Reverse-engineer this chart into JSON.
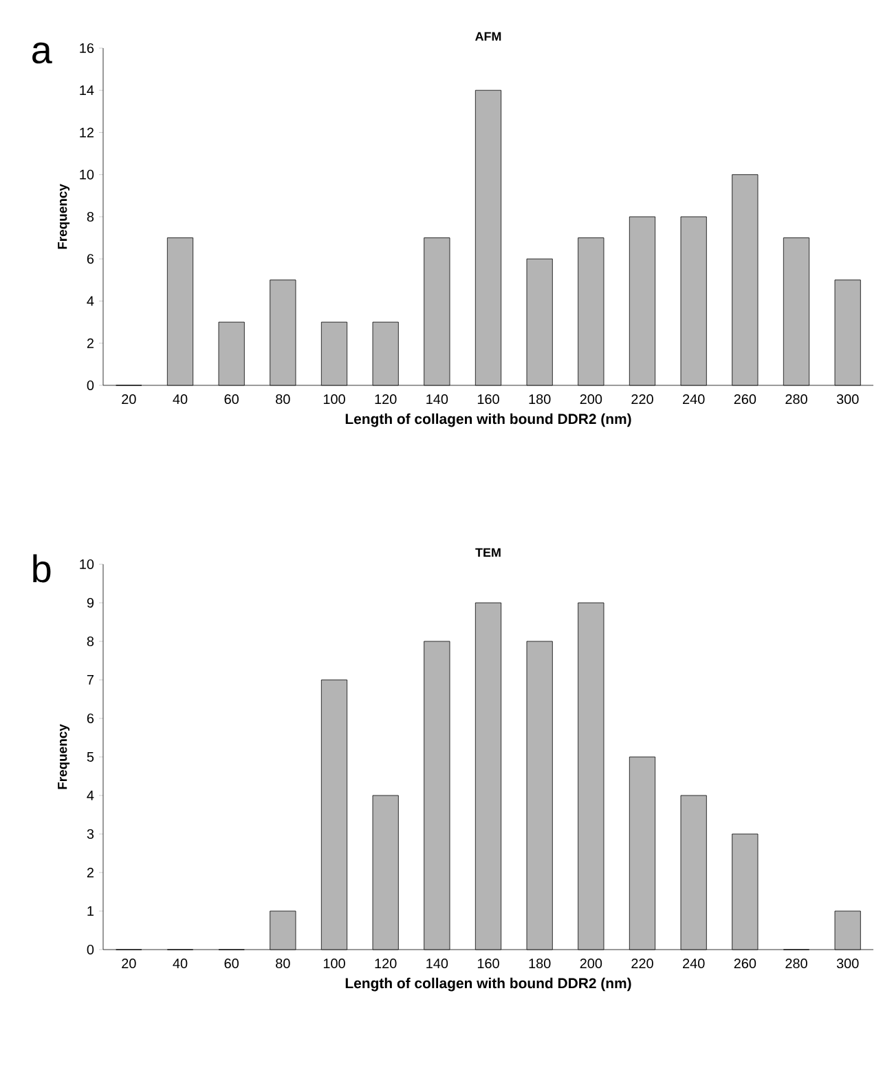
{
  "chart_data": [
    {
      "type": "bar",
      "title": "AFM",
      "xlabel": "Length of collagen with bound DDR2  (nm)",
      "ylabel": "Frequency",
      "annotations": [
        "a"
      ],
      "categories": [
        "20",
        "40",
        "60",
        "80",
        "100",
        "120",
        "140",
        "160",
        "180",
        "200",
        "220",
        "240",
        "260",
        "280",
        "300"
      ],
      "values": [
        0,
        7,
        3,
        5,
        3,
        3,
        7,
        14,
        6,
        7,
        8,
        8,
        10,
        7,
        5
      ],
      "color": "#b4b4b4",
      "ylim": [
        0,
        16
      ],
      "yticks": [
        0,
        2,
        4,
        6,
        8,
        10,
        12,
        14,
        16
      ]
    },
    {
      "type": "bar",
      "title": "TEM",
      "xlabel": "Length of collagen with bound DDR2  (nm)",
      "ylabel": "Frequency",
      "annotations": [
        "b"
      ],
      "categories": [
        "20",
        "40",
        "60",
        "80",
        "100",
        "120",
        "140",
        "160",
        "180",
        "200",
        "220",
        "240",
        "260",
        "280",
        "300"
      ],
      "values": [
        0,
        0,
        0,
        1,
        7,
        4,
        8,
        9,
        8,
        9,
        5,
        4,
        3,
        0,
        1
      ],
      "color": "#b4b4b4",
      "ylim": [
        0,
        10
      ],
      "yticks": [
        0,
        1,
        2,
        3,
        4,
        5,
        6,
        7,
        8,
        9,
        10
      ]
    }
  ]
}
